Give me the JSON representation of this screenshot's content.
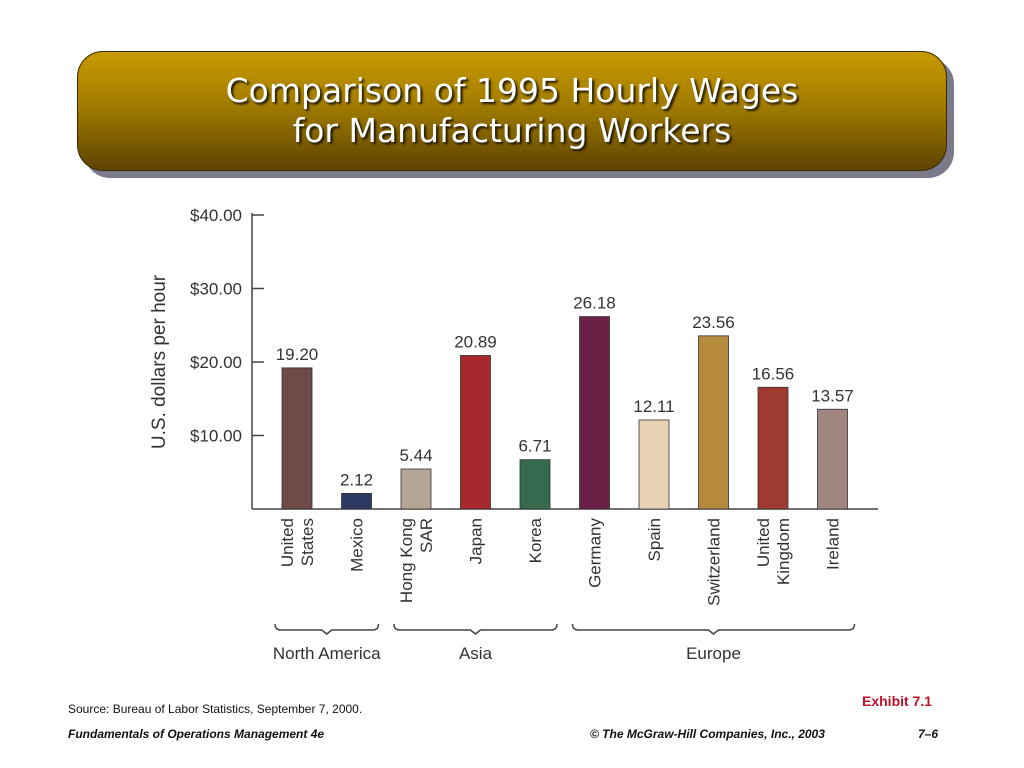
{
  "slide": {
    "title_line1": "Comparison of 1995 Hourly Wages",
    "title_line2": "for Manufacturing Workers",
    "source": "Source: Bureau of Labor Statistics, September 7, 2000.",
    "exhibit": "Exhibit 7.1",
    "footer_left": "Fundamentals of Operations Management 4e",
    "footer_right": "© The McGraw-Hill Companies, Inc., 2003",
    "page_number": "7–6"
  },
  "colors": {
    "title_bar": "#b08600",
    "exhibit_text": "#c0102a"
  },
  "chart_data": {
    "type": "bar",
    "ylabel": "U.S. dollars  per hour",
    "ylim": [
      0,
      40
    ],
    "yticks": [
      10,
      20,
      30,
      40
    ],
    "ytick_labels": [
      "$10.00",
      "$20.00",
      "$30.00",
      "$40.00"
    ],
    "grid": false,
    "categories": [
      [
        "United",
        "States"
      ],
      [
        "Mexico"
      ],
      [
        "Hong Kong",
        "SAR"
      ],
      [
        "Japan"
      ],
      [
        "Korea"
      ],
      [
        "Germany"
      ],
      [
        "Spain"
      ],
      [
        "Switzerland"
      ],
      [
        "United",
        "Kingdom"
      ],
      [
        "Ireland"
      ]
    ],
    "values": [
      19.2,
      2.12,
      5.44,
      20.89,
      6.71,
      26.18,
      12.11,
      23.56,
      16.56,
      13.57
    ],
    "value_labels": [
      "19.20",
      "2.12",
      "5.44",
      "20.89",
      "6.71",
      "26.18",
      "12.11",
      "23.56",
      "16.56",
      "13.57"
    ],
    "bar_colors": [
      "#6e4b48",
      "#2c3a63",
      "#b5a594",
      "#a8282e",
      "#356b4c",
      "#6a2145",
      "#e8d2b4",
      "#b58a3c",
      "#9e3a30",
      "#a08580"
    ],
    "groups": [
      {
        "name": "North America",
        "first": 0,
        "last": 1
      },
      {
        "name": "Asia",
        "first": 2,
        "last": 4
      },
      {
        "name": "Europe",
        "first": 5,
        "last": 9
      }
    ]
  }
}
